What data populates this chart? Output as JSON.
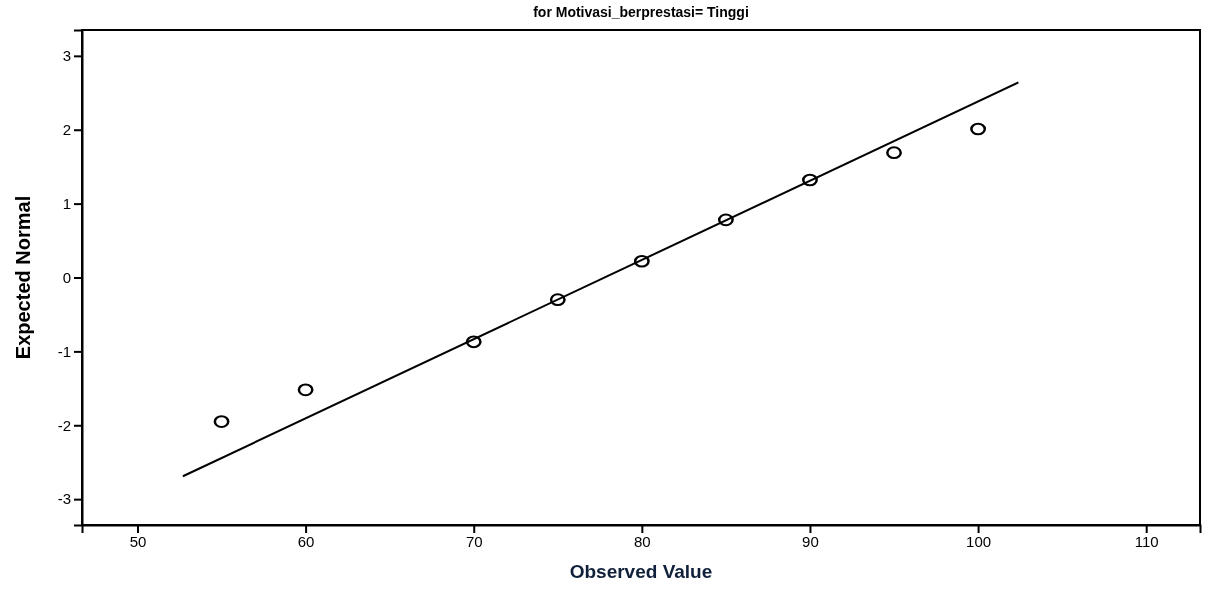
{
  "chart_data": {
    "type": "scatter",
    "title": "for Motivasi_berprestasi= Tinggi",
    "xlabel": "Observed Value",
    "ylabel": "Expected Normal",
    "xlim": [
      46.7,
      113.2
    ],
    "ylim": [
      -3.35,
      3.35
    ],
    "xticks": [
      50,
      60,
      70,
      80,
      90,
      100,
      110
    ],
    "yticks": [
      -3,
      -2,
      -1,
      0,
      1,
      2,
      3
    ],
    "grid": false,
    "marker": "circle",
    "series": [
      {
        "color": "#000000",
        "x": [
          55,
          60,
          70,
          75,
          80,
          85,
          90,
          95,
          100
        ],
        "values": [
          -1.95,
          -1.52,
          -0.87,
          -0.3,
          0.22,
          0.78,
          1.32,
          1.69,
          2.01
        ]
      },
      {
        "type": "line",
        "color": "#000000",
        "x": [
          52.7,
          102.4
        ],
        "values": [
          -2.69,
          2.64
        ],
        "marker": "none",
        "line_style": "solid"
      }
    ]
  }
}
